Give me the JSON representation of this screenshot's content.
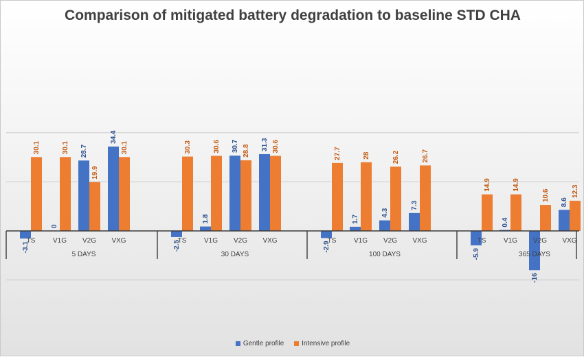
{
  "chart_data": {
    "type": "bar",
    "title": "Comparison of mitigated battery degradation to baseline STD CHA",
    "groups": [
      "5 DAYS",
      "30 DAYS",
      "100 DAYS",
      "365 DAYS"
    ],
    "categories": [
      "TS",
      "V1G",
      "V2G",
      "VXG"
    ],
    "series": [
      {
        "name": "Gentle profile",
        "color": "#4472c4",
        "values": [
          [
            -3.1,
            0,
            28.7,
            34.4
          ],
          [
            -2.5,
            1.8,
            30.7,
            31.3
          ],
          [
            -2.9,
            1.7,
            4.3,
            7.3
          ],
          [
            -5.9,
            0.4,
            -16,
            8.6
          ]
        ]
      },
      {
        "name": "Intensive profile",
        "color": "#ed7d31",
        "values": [
          [
            30.1,
            30.1,
            19.9,
            30.1
          ],
          [
            30.3,
            30.6,
            28.8,
            30.6
          ],
          [
            27.7,
            28,
            26.2,
            26.7
          ],
          [
            14.9,
            14.9,
            10.6,
            12.3
          ]
        ]
      }
    ],
    "ylim": [
      -20,
      40
    ],
    "grid": true,
    "legend_position": "bottom"
  }
}
